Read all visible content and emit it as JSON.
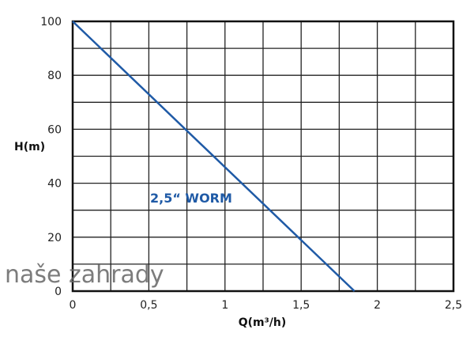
{
  "chart_data": {
    "type": "line",
    "title": "",
    "xlabel": "Q(m³/h)",
    "ylabel": "H(m)",
    "xlim": [
      0,
      2.5
    ],
    "ylim": [
      0,
      100
    ],
    "x_grid_step": 0.25,
    "y_grid_step": 10,
    "grid": true,
    "x_ticks": [
      0,
      0.5,
      1,
      1.5,
      2,
      2.5
    ],
    "x_tick_labels": [
      "0",
      "0,5",
      "1",
      "1,5",
      "2",
      "2,5"
    ],
    "y_ticks": [
      0,
      20,
      40,
      60,
      80,
      100
    ],
    "y_tick_labels": [
      "0",
      "20",
      "40",
      "60",
      "80",
      "100"
    ],
    "series": [
      {
        "name": "2,5“ WORM",
        "x": [
          0,
          1.85
        ],
        "y": [
          100,
          0
        ],
        "color": "#1f5aa6"
      }
    ]
  },
  "watermark": "naše zahrady"
}
